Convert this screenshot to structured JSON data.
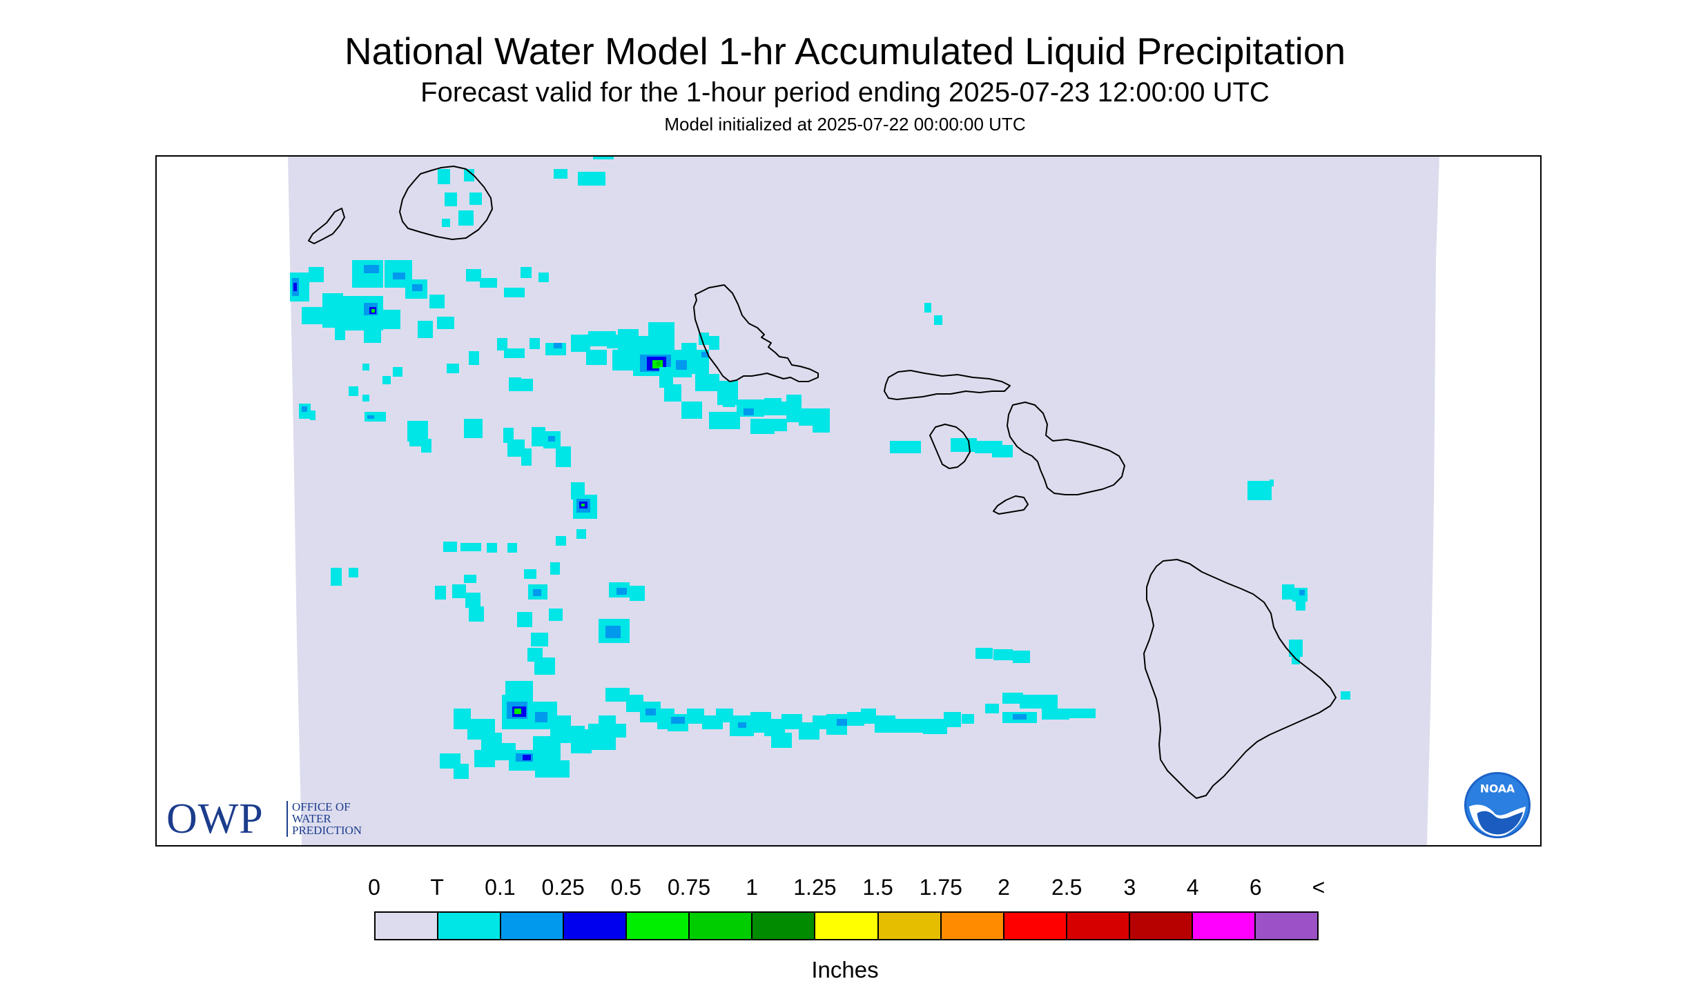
{
  "header": {
    "title": "National Water Model 1-hr Accumulated Liquid Precipitation",
    "subtitle": "Forecast valid for the 1-hour period ending 2025-07-23 12:00:00 UTC",
    "init_line": "Model initialized at 2025-07-22 00:00:00 UTC"
  },
  "map": {
    "region": "Hawaiian Islands",
    "islands": [
      "Niihau",
      "Kauai",
      "Oahu",
      "Molokai",
      "Lanai",
      "Maui",
      "Kahoolawe",
      "Hawaii"
    ],
    "background_color": "#dcdcee",
    "outline_color": "#000000"
  },
  "logos": {
    "owp_mark": "OWP",
    "owp_name_line1": "OFFICE OF",
    "owp_name_line2": "WATER",
    "owp_name_line3": "PREDICTION",
    "noaa_mark": "NOAA"
  },
  "legend": {
    "tick_labels": [
      "0",
      "T",
      "0.1",
      "0.25",
      "0.5",
      "0.75",
      "1",
      "1.25",
      "1.5",
      "1.75",
      "2",
      "2.5",
      "3",
      "4",
      "6",
      "<"
    ],
    "colors": [
      "#dcdcee",
      "#00e5e5",
      "#0099ee",
      "#0000ee",
      "#00ee00",
      "#00cd00",
      "#008b00",
      "#ffff00",
      "#e6be00",
      "#ff8c00",
      "#ff0000",
      "#d70000",
      "#b70000",
      "#ff00ff",
      "#9c52c6"
    ],
    "units": "Inches"
  }
}
